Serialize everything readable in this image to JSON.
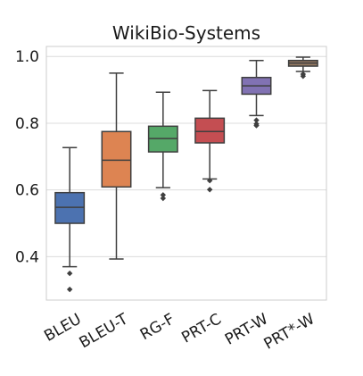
{
  "chart_data": {
    "type": "box",
    "title": "WikiBio-Systems",
    "xlabel": "",
    "ylabel": "",
    "ylim": [
      0.27,
      1.03
    ],
    "yticks": [
      0.4,
      0.6,
      0.8,
      1.0
    ],
    "ytick_labels": [
      "0.4",
      "0.6",
      "0.8",
      "1.0"
    ],
    "grid": "horizontal",
    "categories": [
      "BLEU",
      "BLEU-T",
      "RG-F",
      "PRT-C",
      "PRT-W",
      "PRT*-W"
    ],
    "boxes": [
      {
        "label": "BLEU",
        "color": "#4c72b0",
        "whisker_low": 0.37,
        "q1": 0.5,
        "median": 0.548,
        "q3": 0.592,
        "whisker_high": 0.727,
        "outliers": [
          0.35,
          0.302
        ]
      },
      {
        "label": "BLEU-T",
        "color": "#dd8452",
        "whisker_low": 0.393,
        "q1": 0.609,
        "median": 0.689,
        "q3": 0.775,
        "whisker_high": 0.95,
        "outliers": []
      },
      {
        "label": "RG-F",
        "color": "#55a868",
        "whisker_low": 0.607,
        "q1": 0.714,
        "median": 0.754,
        "q3": 0.791,
        "whisker_high": 0.893,
        "outliers": [
          0.585,
          0.575
        ]
      },
      {
        "label": "PRT-C",
        "color": "#c44e52",
        "whisker_low": 0.633,
        "q1": 0.741,
        "median": 0.775,
        "q3": 0.815,
        "whisker_high": 0.898,
        "outliers": [
          0.628,
          0.601
        ]
      },
      {
        "label": "PRT-W",
        "color": "#8172b3",
        "whisker_low": 0.823,
        "q1": 0.887,
        "median": 0.912,
        "q3": 0.937,
        "whisker_high": 0.988,
        "outliers": [
          0.809,
          0.798,
          0.793
        ]
      },
      {
        "label": "PRT*-W",
        "color": "#937860",
        "whisker_low": 0.955,
        "q1": 0.971,
        "median": 0.98,
        "q3": 0.988,
        "whisker_high": 0.998,
        "outliers": [
          0.947,
          0.941
        ]
      }
    ]
  }
}
